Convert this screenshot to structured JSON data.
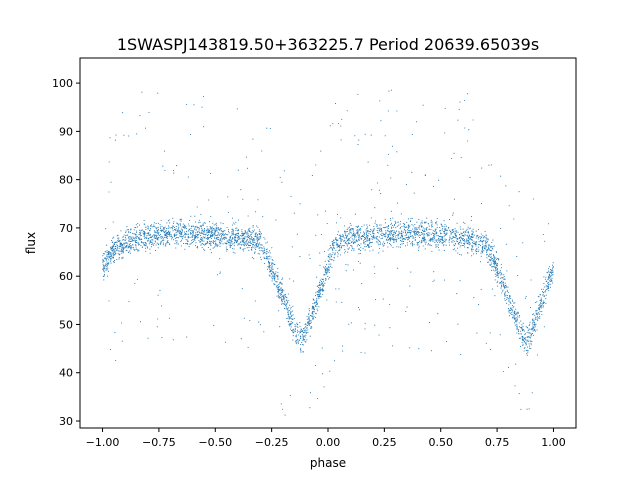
{
  "chart_data": {
    "type": "scatter",
    "title": "1SWASPJ143819.50+363225.7 Period 20639.65039s",
    "xlabel": "phase",
    "ylabel": "flux",
    "xlim": [
      -1.1,
      1.1
    ],
    "ylim": [
      28.55,
      105.2
    ],
    "xticks": [
      -1.0,
      -0.75,
      -0.5,
      -0.25,
      0.0,
      0.25,
      0.5,
      0.75,
      1.0
    ],
    "xtick_labels": [
      "−1.00",
      "−0.75",
      "−0.50",
      "−0.25",
      "0.00",
      "0.25",
      "0.50",
      "0.75",
      "1.00"
    ],
    "yticks": [
      30,
      40,
      50,
      60,
      70,
      80,
      90,
      100
    ],
    "ytick_labels": [
      "30",
      "40",
      "50",
      "60",
      "70",
      "80",
      "90",
      "100"
    ],
    "grid": false,
    "marker_color": "#1f77b4",
    "point_spread_flux": 2.0,
    "outlier_fraction": 0.08,
    "median_curve": {
      "phase": [
        -1.0,
        -0.95,
        -0.9,
        -0.8,
        -0.65,
        -0.5,
        -0.35,
        -0.3,
        -0.25,
        -0.2,
        -0.15,
        -0.12,
        -0.1,
        -0.05,
        0.0,
        0.02,
        0.05,
        0.1,
        0.2,
        0.35,
        0.5,
        0.65,
        0.7,
        0.75,
        0.8,
        0.85,
        0.88,
        0.9,
        0.95,
        1.0
      ],
      "flux": [
        62,
        65.5,
        67,
        68.3,
        69,
        68.5,
        67.5,
        67,
        62,
        55.5,
        49,
        46.5,
        48,
        55,
        62,
        65.5,
        67,
        68,
        68.3,
        69,
        68.5,
        67.5,
        66.5,
        62,
        55.5,
        49,
        46.5,
        48,
        55,
        62
      ]
    }
  }
}
